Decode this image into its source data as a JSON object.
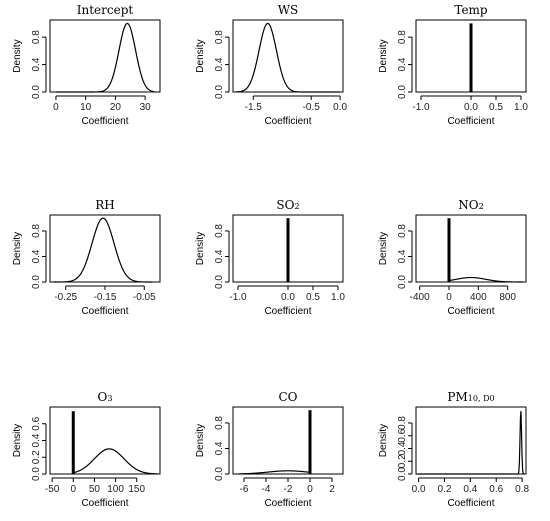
{
  "chart_data": [
    {
      "type": "line",
      "title": "Intercept",
      "xlabel": "Coefficient",
      "ylabel": "Density",
      "xlim": [
        -2,
        35
      ],
      "ylim": [
        0,
        1.05
      ],
      "xticks": [
        {
          "v": 0,
          "t": "0"
        },
        {
          "v": 10,
          "t": "10"
        },
        {
          "v": 20,
          "t": "20"
        },
        {
          "v": 30,
          "t": "30"
        }
      ],
      "yticks": [
        {
          "v": 0,
          "t": "0.0"
        },
        {
          "v": 0.4,
          "t": "0.4"
        },
        {
          "v": 0.8,
          "t": "0.8"
        }
      ],
      "curve": {
        "shape": "normal",
        "mean": 24,
        "sd": 2.8,
        "peak": 1.0,
        "range": [
          0,
          33
        ]
      }
    },
    {
      "type": "line",
      "title": "WS",
      "xlabel": "Coefficient",
      "ylabel": "Density",
      "xlim": [
        -1.85,
        0.05
      ],
      "ylim": [
        0,
        1.05
      ],
      "xticks": [
        {
          "v": -1.5,
          "t": "-1.5"
        },
        {
          "v": -0.5,
          "t": "-0.5"
        },
        {
          "v": 0,
          "t": "0.0"
        }
      ],
      "yticks": [
        {
          "v": 0,
          "t": "0.0"
        },
        {
          "v": 0.4,
          "t": "0.4"
        },
        {
          "v": 0.8,
          "t": "0.8"
        }
      ],
      "curve": {
        "shape": "normal",
        "mean": -1.25,
        "sd": 0.15,
        "peak": 1.0,
        "range": [
          -1.8,
          0
        ]
      }
    },
    {
      "type": "line",
      "title": "Temp",
      "xlabel": "Coefficient",
      "ylabel": "Density",
      "xlim": [
        -1.1,
        1.1
      ],
      "ylim": [
        0,
        1.05
      ],
      "xticks": [
        {
          "v": -1,
          "t": "-1.0"
        },
        {
          "v": 0,
          "t": "0.0"
        },
        {
          "v": 0.5,
          "t": "0.5"
        },
        {
          "v": 1,
          "t": "1.0"
        }
      ],
      "yticks": [
        {
          "v": 0,
          "t": "0.0"
        },
        {
          "v": 0.4,
          "t": "0.4"
        },
        {
          "v": 0.8,
          "t": "0.8"
        }
      ],
      "spike": {
        "x": 0,
        "y": 1.0
      }
    },
    {
      "type": "line",
      "title": "RH",
      "xlabel": "Coefficient",
      "ylabel": "Density",
      "xlim": [
        -0.29,
        -0.01
      ],
      "ylim": [
        0,
        1.05
      ],
      "xticks": [
        {
          "v": -0.25,
          "t": "-0.25"
        },
        {
          "v": -0.15,
          "t": "-0.15"
        },
        {
          "v": -0.05,
          "t": "-0.05"
        }
      ],
      "yticks": [
        {
          "v": 0,
          "t": "0.0"
        },
        {
          "v": 0.4,
          "t": "0.4"
        },
        {
          "v": 0.8,
          "t": "0.8"
        }
      ],
      "curve": {
        "shape": "normal",
        "mean": -0.155,
        "sd": 0.028,
        "peak": 1.0,
        "range": [
          -0.28,
          -0.03
        ]
      }
    },
    {
      "type": "line",
      "title": "SO",
      "title_sub": "2",
      "xlabel": "Coefficient",
      "ylabel": "Density",
      "xlim": [
        -1.1,
        1.1
      ],
      "ylim": [
        0,
        1.05
      ],
      "xticks": [
        {
          "v": -1,
          "t": "-1.0"
        },
        {
          "v": 0,
          "t": "0.0"
        },
        {
          "v": 0.5,
          "t": "0.5"
        },
        {
          "v": 1,
          "t": "1.0"
        }
      ],
      "yticks": [
        {
          "v": 0,
          "t": "0.0"
        },
        {
          "v": 0.4,
          "t": "0.4"
        },
        {
          "v": 0.8,
          "t": "0.8"
        }
      ],
      "spike": {
        "x": 0,
        "y": 1.0
      }
    },
    {
      "type": "line",
      "title": "NO",
      "title_sub": "2",
      "xlabel": "Coefficient",
      "ylabel": "Density",
      "xlim": [
        -450,
        1050
      ],
      "ylim": [
        0,
        1.05
      ],
      "xticks": [
        {
          "v": -400,
          "t": "-400"
        },
        {
          "v": 0,
          "t": "0"
        },
        {
          "v": 400,
          "t": "400"
        },
        {
          "v": 800,
          "t": "800"
        }
      ],
      "yticks": [
        {
          "v": 0,
          "t": "0.0"
        },
        {
          "v": 0.4,
          "t": "0.4"
        },
        {
          "v": 0.8,
          "t": "0.8"
        }
      ],
      "spike": {
        "x": 0,
        "y": 1.0
      },
      "curve": {
        "shape": "normal",
        "mean": 300,
        "sd": 200,
        "peak": 0.07,
        "range": [
          0,
          1000
        ]
      }
    },
    {
      "type": "line",
      "title": "O",
      "title_sub": "3",
      "xlabel": "Coefficient",
      "ylabel": "Density",
      "xlim": [
        -55,
        205
      ],
      "ylim": [
        0,
        0.8
      ],
      "xticks": [
        {
          "v": -50,
          "t": "-50"
        },
        {
          "v": 0,
          "t": "0"
        },
        {
          "v": 50,
          "t": "50"
        },
        {
          "v": 100,
          "t": "100"
        },
        {
          "v": 150,
          "t": "150"
        }
      ],
      "yticks": [
        {
          "v": 0,
          "t": "0.0"
        },
        {
          "v": 0.2,
          "t": "0.2"
        },
        {
          "v": 0.4,
          "t": "0.4"
        },
        {
          "v": 0.6,
          "t": "0.6"
        }
      ],
      "spike": {
        "x": 0,
        "y": 0.75
      },
      "curve": {
        "shape": "normal",
        "mean": 85,
        "sd": 35,
        "peak": 0.3,
        "range": [
          0,
          200
        ]
      }
    },
    {
      "type": "line",
      "title": "CO",
      "xlabel": "Coefficient",
      "ylabel": "Density",
      "xlim": [
        -7,
        3
      ],
      "ylim": [
        0,
        1.05
      ],
      "xticks": [
        {
          "v": -6,
          "t": "-6"
        },
        {
          "v": -4,
          "t": "-4"
        },
        {
          "v": -2,
          "t": "-2"
        },
        {
          "v": 0,
          "t": "0"
        },
        {
          "v": 2,
          "t": "2"
        }
      ],
      "yticks": [
        {
          "v": 0,
          "t": "0.0"
        },
        {
          "v": 0.4,
          "t": "0.4"
        },
        {
          "v": 0.8,
          "t": "0.8"
        }
      ],
      "spike": {
        "x": 0,
        "y": 1.0
      },
      "curve": {
        "shape": "normal",
        "mean": -2,
        "sd": 1.8,
        "peak": 0.05,
        "range": [
          -6.5,
          0
        ]
      }
    },
    {
      "type": "line",
      "title": "PM",
      "title_sub": "10, D0",
      "xlabel": "Coefficient",
      "ylabel": "Density",
      "xlim": [
        -0.02,
        0.83
      ],
      "ylim": [
        0,
        1.05
      ],
      "xticks": [
        {
          "v": 0,
          "t": "0.0"
        },
        {
          "v": 0.2,
          "t": "0.2"
        },
        {
          "v": 0.4,
          "t": "0.4"
        },
        {
          "v": 0.6,
          "t": "0.6"
        },
        {
          "v": 0.8,
          "t": "0.8"
        }
      ],
      "yticks": [
        {
          "v": 0,
          "t": "0.0"
        },
        {
          "v": 0.2,
          "t": "0.2"
        },
        {
          "v": 0.4,
          "t": "0.4"
        },
        {
          "v": 0.6,
          "t": "0.6"
        },
        {
          "v": 0.8,
          "t": "0.8"
        }
      ],
      "curve": {
        "shape": "normal",
        "mean": 0.79,
        "sd": 0.006,
        "peak": 1.0,
        "range": [
          -0.01,
          0.82
        ]
      }
    }
  ]
}
